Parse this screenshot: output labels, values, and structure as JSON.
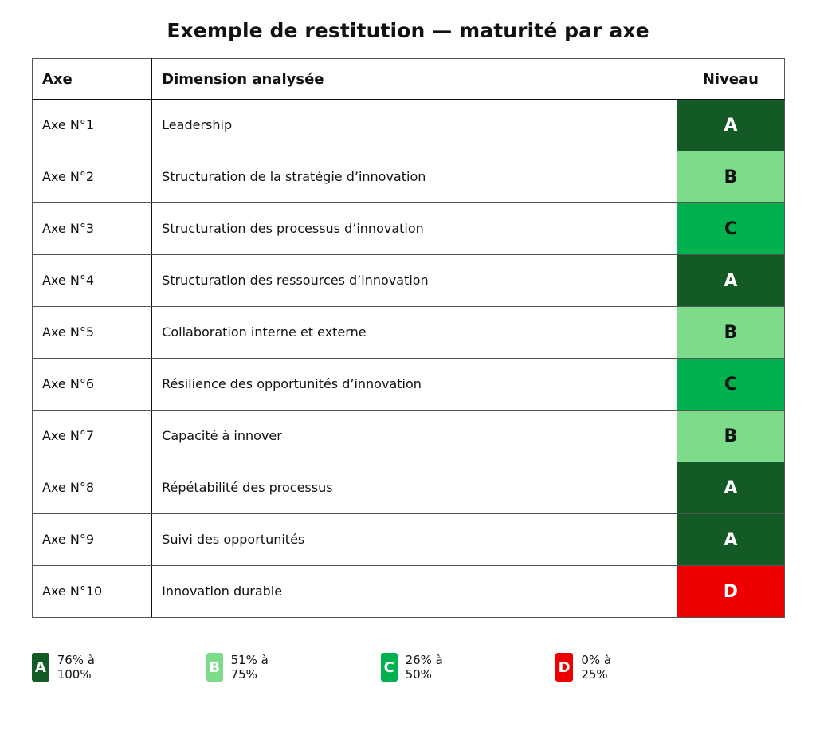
{
  "title": "Exemple de restitution — maturité par axe",
  "table": {
    "headers": {
      "axe": "Axe",
      "dimension": "Dimension analysée",
      "niveau": "Niveau"
    },
    "rows": [
      {
        "axe": "Axe N°1",
        "dimension": "Leadership",
        "niveau": "A"
      },
      {
        "axe": "Axe N°2",
        "dimension": "Structuration de la stratégie d’innovation",
        "niveau": "B"
      },
      {
        "axe": "Axe N°3",
        "dimension": "Structuration des processus d’innovation",
        "niveau": "C"
      },
      {
        "axe": "Axe N°4",
        "dimension": "Structuration des ressources d’innovation",
        "niveau": "A"
      },
      {
        "axe": "Axe N°5",
        "dimension": "Collaboration interne et externe",
        "niveau": "B"
      },
      {
        "axe": "Axe N°6",
        "dimension": "Résilience des opportunités d’innovation",
        "niveau": "C"
      },
      {
        "axe": "Axe N°7",
        "dimension": "Capacité à innover",
        "niveau": "B"
      },
      {
        "axe": "Axe N°8",
        "dimension": "Répétabilité des processus",
        "niveau": "A"
      },
      {
        "axe": "Axe N°9",
        "dimension": "Suivi des opportunités",
        "niveau": "A"
      },
      {
        "axe": "Axe N°10",
        "dimension": "Innovation durable",
        "niveau": "D"
      }
    ]
  },
  "levels": {
    "A": {
      "color": "#145a26",
      "text_color": "#ffffff"
    },
    "B": {
      "color": "#7ddc8a",
      "text_color": "#111111"
    },
    "C": {
      "color": "#00b24d",
      "text_color": "#111111"
    },
    "D": {
      "color": "#ee0000",
      "text_color": "#ffffff"
    }
  },
  "legend": [
    {
      "level": "A",
      "range": "76% à 100%"
    },
    {
      "level": "B",
      "range": "51% à 75%"
    },
    {
      "level": "C",
      "range": "26% à 50%"
    },
    {
      "level": "D",
      "range": "0% à 25%"
    }
  ]
}
